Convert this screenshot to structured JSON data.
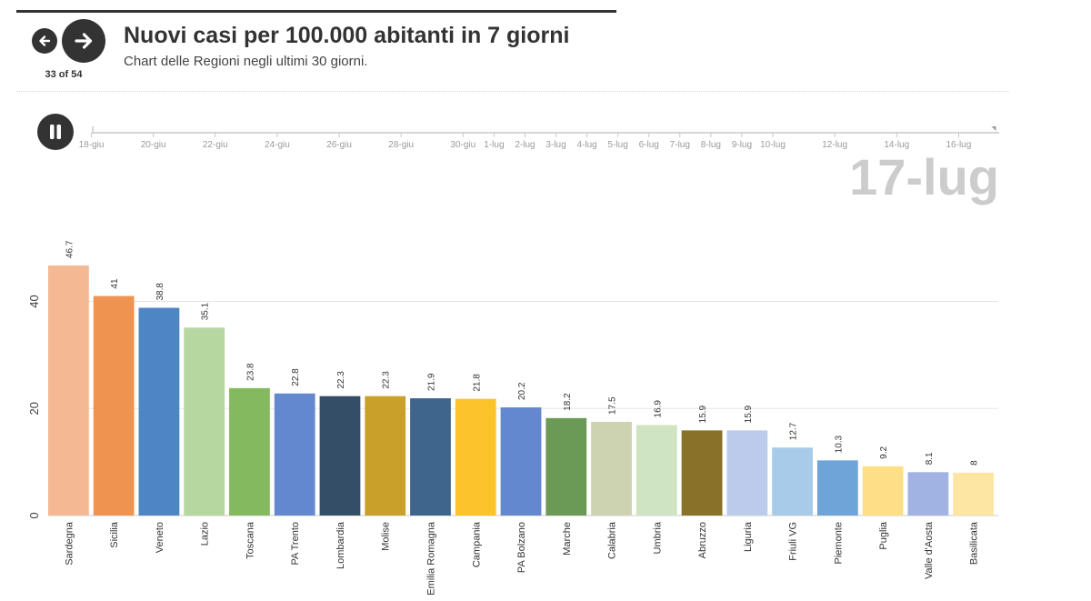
{
  "title": "Nuovi casi per 100.000 abitanti in 7 giorni",
  "subtitle": "Chart delle Regioni negli ultimi 30 giorni.",
  "navigation": {
    "counter": "33 of 54",
    "prev_icon": "arrow-left-icon",
    "next_icon": "arrow-right-icon"
  },
  "player": {
    "pause_icon": "pause-icon",
    "current_date": "17-lug"
  },
  "timeline": {
    "ticks": [
      "18-giu",
      "20-giu",
      "22-giu",
      "24-giu",
      "26-giu",
      "28-giu",
      "30-giu",
      "1-lug",
      "2-lug",
      "3-lug",
      "4-lug",
      "5-lug",
      "6-lug",
      "7-lug",
      "8-lug",
      "9-lug",
      "10-lug",
      "12-lug",
      "14-lug",
      "16-lug"
    ],
    "tick_days": [
      0,
      2,
      4,
      6,
      8,
      10,
      12,
      13,
      14,
      15,
      16,
      17,
      18,
      19,
      20,
      21,
      22,
      24,
      26,
      28
    ],
    "day_range": [
      -0.25,
      29.25
    ],
    "current_day": 29
  },
  "chart_data": {
    "type": "bar",
    "title": "Nuovi casi per 100.000 abitanti in 7 giorni",
    "xlabel": "",
    "ylabel": "",
    "ylim": [
      0,
      46.7
    ],
    "yticks": [
      0,
      20,
      40
    ],
    "grid": true,
    "categories": [
      "Sardegna",
      "Sicilia",
      "Veneto",
      "Lazio",
      "Toscana",
      "PA Trento",
      "Lombardia",
      "Molise",
      "Emilia Romagna",
      "Campania",
      "PA Bolzano",
      "Marche",
      "Calabria",
      "Umbria",
      "Abruzzo",
      "Liguria",
      "Friuli VG",
      "Piemonte",
      "Puglia",
      "Valle d'Aosta",
      "Basilicata"
    ],
    "values": [
      46.7,
      41,
      38.8,
      35.1,
      23.8,
      22.8,
      22.3,
      22.3,
      21.9,
      21.8,
      20.2,
      18.2,
      17.5,
      16.9,
      15.9,
      15.9,
      12.7,
      10.3,
      9.2,
      8.1,
      8
    ],
    "value_labels": [
      "46.7",
      "41",
      "38.8",
      "35.1",
      "23.8",
      "22.8",
      "22.3",
      "22.3",
      "21.9",
      "21.8",
      "20.2",
      "18.2",
      "17.5",
      "16.9",
      "15.9",
      "15.9",
      "12.7",
      "10.3",
      "9.2",
      "8.1",
      "8"
    ],
    "colors": [
      "#f4b992",
      "#ef9350",
      "#4e86c3",
      "#b6d8a0",
      "#84b960",
      "#6488cf",
      "#354e68",
      "#c9a02a",
      "#3f658d",
      "#fcc42b",
      "#6488cf",
      "#6a9a55",
      "#cdd3b0",
      "#cfe5c2",
      "#8a7128",
      "#bccbec",
      "#a9cbea",
      "#6fa4d8",
      "#fddf85",
      "#a0b3e2",
      "#fde6a3"
    ]
  }
}
